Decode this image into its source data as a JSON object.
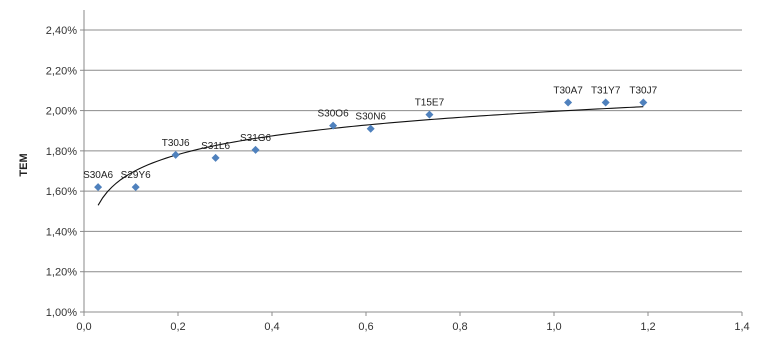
{
  "chart_data": {
    "type": "scatter",
    "ylabel": "TEM",
    "xlim": [
      0,
      1.4
    ],
    "ylim": [
      1.0,
      2.4
    ],
    "x_ticks": [
      "0,0",
      "0,2",
      "0,4",
      "0,6",
      "0,8",
      "1,0",
      "1,2",
      "1,4"
    ],
    "y_ticks": [
      "1,00%",
      "1,20%",
      "1,40%",
      "1,60%",
      "1,80%",
      "2,00%",
      "2,20%",
      "2,40%"
    ],
    "grid": "horizontal",
    "marker_color": "#4F81BD",
    "trendline": {
      "type": "logarithmic",
      "x_range": [
        0.03,
        1.19
      ]
    },
    "points": [
      {
        "label": "S30A6",
        "x": 0.03,
        "y": 1.62
      },
      {
        "label": "S29Y6",
        "x": 0.11,
        "y": 1.62
      },
      {
        "label": "T30J6",
        "x": 0.195,
        "y": 1.78
      },
      {
        "label": "S31L6",
        "x": 0.28,
        "y": 1.765
      },
      {
        "label": "S31G6",
        "x": 0.365,
        "y": 1.805
      },
      {
        "label": "S30O6",
        "x": 0.53,
        "y": 1.925
      },
      {
        "label": "S30N6",
        "x": 0.61,
        "y": 1.91
      },
      {
        "label": "T15E7",
        "x": 0.735,
        "y": 1.98
      },
      {
        "label": "T30A7",
        "x": 1.03,
        "y": 2.04
      },
      {
        "label": "T31Y7",
        "x": 1.11,
        "y": 2.04
      },
      {
        "label": "T30J7",
        "x": 1.19,
        "y": 2.04
      }
    ]
  }
}
